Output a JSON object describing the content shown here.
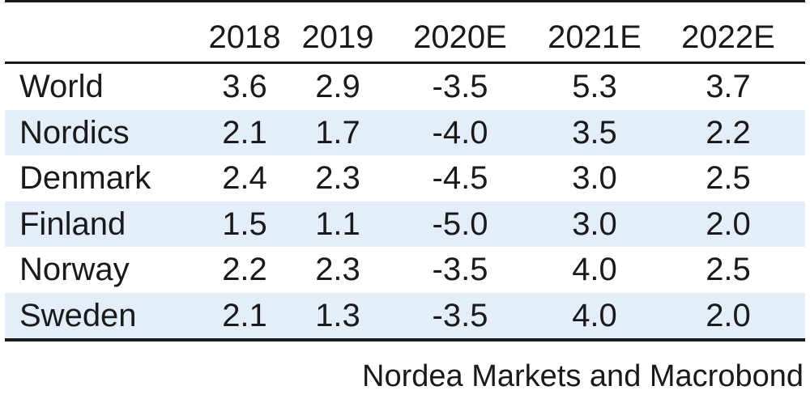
{
  "chart_data": {
    "type": "table",
    "columns": [
      "2018",
      "2019",
      "2020E",
      "2021E",
      "2022E"
    ],
    "rows": [
      {
        "label": "World",
        "values": [
          "3.6",
          "2.9",
          "-3.5",
          "5.3",
          "3.7"
        ]
      },
      {
        "label": "Nordics",
        "values": [
          "2.1",
          "1.7",
          "-4.0",
          "3.5",
          "2.2"
        ]
      },
      {
        "label": "Denmark",
        "values": [
          "2.4",
          "2.3",
          "-4.5",
          "3.0",
          "2.5"
        ]
      },
      {
        "label": "Finland",
        "values": [
          "1.5",
          "1.1",
          "-5.0",
          "3.0",
          "2.0"
        ]
      },
      {
        "label": "Norway",
        "values": [
          "2.2",
          "2.3",
          "-3.5",
          "4.0",
          "2.5"
        ]
      },
      {
        "label": "Sweden",
        "values": [
          "2.1",
          "1.3",
          "-3.5",
          "4.0",
          "2.0"
        ]
      }
    ],
    "source": "Nordea Markets and Macrobond"
  },
  "colors": {
    "row_shade": "#e4eef9",
    "rule": "#1a1a1a",
    "text": "#1a1a1a"
  }
}
